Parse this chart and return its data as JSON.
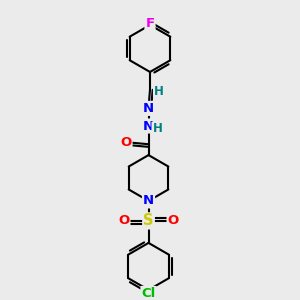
{
  "background_color": "#ebebeb",
  "bond_color": "black",
  "bond_width": 1.5,
  "atom_colors": {
    "F": "#ee00ee",
    "N": "#0000ff",
    "O": "#ff0000",
    "S": "#cccc00",
    "Cl": "#00bb00",
    "H": "#008080",
    "C": "black"
  },
  "font_size": 9.5
}
